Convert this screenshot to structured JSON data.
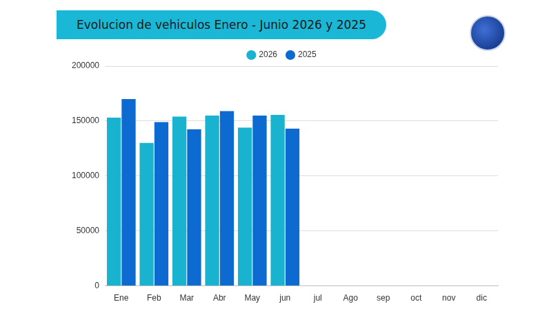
{
  "chart_data": {
    "type": "bar",
    "title": "Evolucion de vehiculos Enero - Junio 2026 y 2025",
    "categories": [
      "Ene",
      "Feb",
      "Mar",
      "Abr",
      "May",
      "jun",
      "jul",
      "Ago",
      "sep",
      "oct",
      "nov",
      "dic"
    ],
    "series": [
      {
        "name": "2026",
        "color": "#1ab3cf",
        "values": [
          153000,
          130000,
          154000,
          155000,
          144000,
          155500,
          null,
          null,
          null,
          null,
          null,
          null
        ]
      },
      {
        "name": "2025",
        "color": "#0d6ad1",
        "values": [
          170000,
          149000,
          142500,
          159000,
          155000,
          143000,
          null,
          null,
          null,
          null,
          null,
          null
        ]
      }
    ],
    "ylim": [
      0,
      200000
    ],
    "yticks": [
      0,
      50000,
      100000,
      150000,
      200000
    ],
    "grid": true,
    "legend": "top"
  }
}
